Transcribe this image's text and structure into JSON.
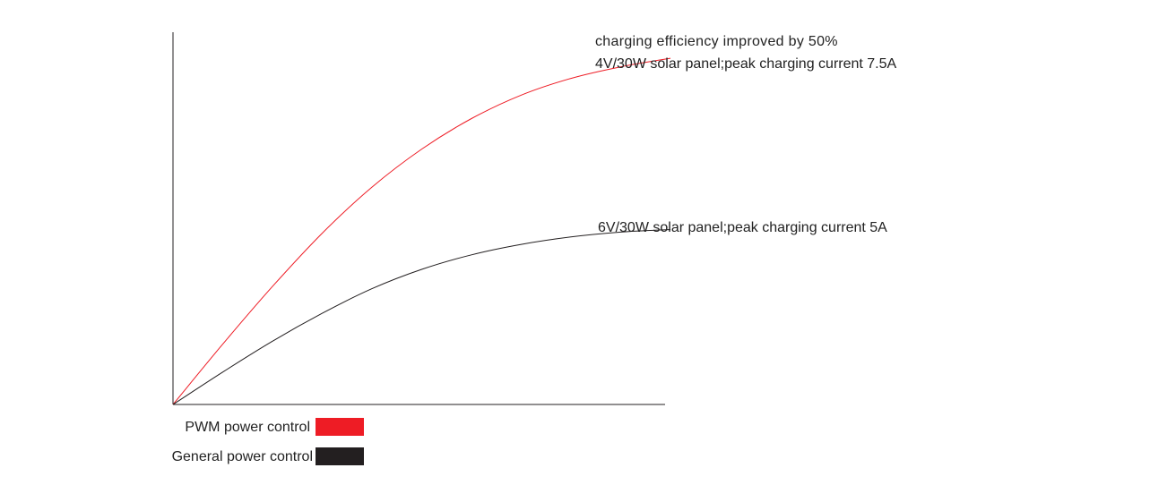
{
  "chart_data": {
    "type": "line",
    "title": "",
    "xlabel": "",
    "ylabel": "",
    "grid": false,
    "xlim": [
      0,
      1
    ],
    "ylim": [
      0,
      1
    ],
    "annotations": {
      "efficiency_note": "charging efficiency improved by 50%",
      "pwm_note": "4V/30W solar panel;peak charging current 7.5A",
      "general_note": "6V/30W solar panel;peak charging current 5A"
    },
    "series": [
      {
        "name": "PWM power control",
        "color": "#ee1c25",
        "x": [
          0,
          0.1,
          0.2,
          0.3,
          0.4,
          0.5,
          0.6,
          0.7,
          0.8,
          0.9,
          1.0
        ],
        "y": [
          0,
          0.162,
          0.317,
          0.46,
          0.584,
          0.686,
          0.768,
          0.831,
          0.876,
          0.907,
          0.93
        ]
      },
      {
        "name": "General power control",
        "color": "#231f20",
        "x": [
          0,
          0.1,
          0.2,
          0.3,
          0.4,
          0.5,
          0.6,
          0.7,
          0.8,
          0.9,
          1.0
        ],
        "y": [
          0,
          0.087,
          0.17,
          0.245,
          0.311,
          0.363,
          0.402,
          0.43,
          0.45,
          0.463,
          0.47
        ]
      }
    ],
    "legend": [
      {
        "label": "PWM power control",
        "color": "#ee1c25"
      },
      {
        "label": "General power control",
        "color": "#231f20"
      }
    ],
    "legend_placement": "bottom-left"
  }
}
